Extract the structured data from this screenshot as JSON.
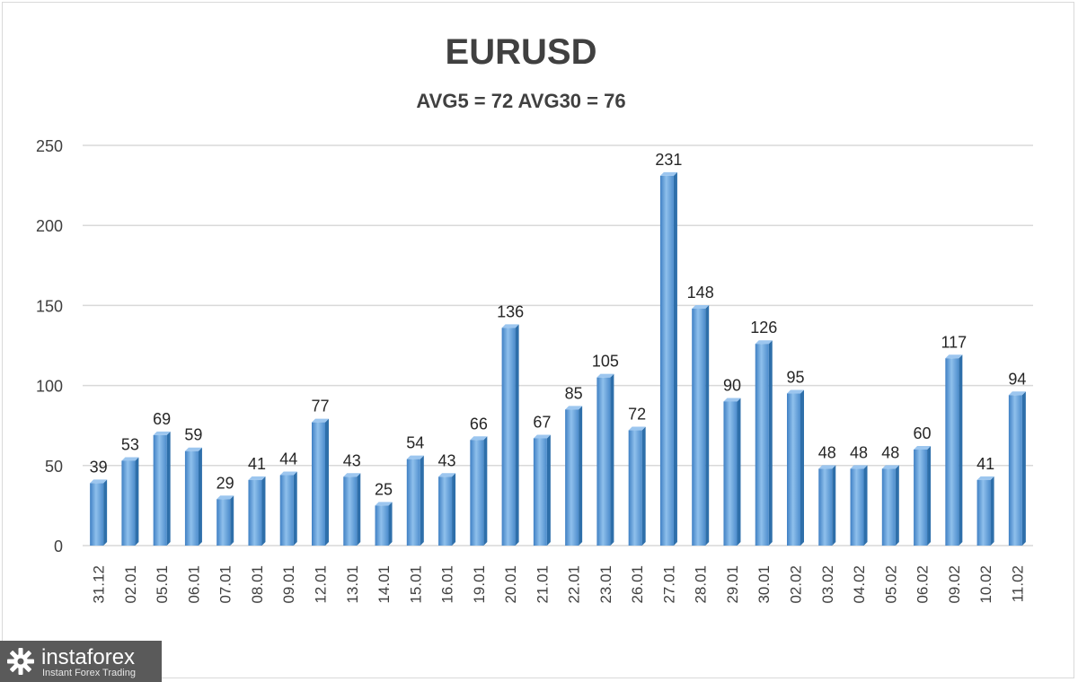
{
  "chart_data": {
    "type": "bar",
    "title": "EURUSD",
    "subtitle": "AVG5 = 72 AVG30 = 76",
    "categories": [
      "31.12",
      "02.01",
      "05.01",
      "06.01",
      "07.01",
      "08.01",
      "09.01",
      "12.01",
      "13.01",
      "14.01",
      "15.01",
      "16.01",
      "19.01",
      "20.01",
      "21.01",
      "22.01",
      "23.01",
      "26.01",
      "27.01",
      "28.01",
      "29.01",
      "30.01",
      "02.02",
      "03.02",
      "04.02",
      "05.02",
      "06.02",
      "09.02",
      "10.02",
      "11.02"
    ],
    "values": [
      39,
      53,
      69,
      59,
      29,
      41,
      44,
      77,
      43,
      25,
      54,
      43,
      66,
      136,
      67,
      85,
      105,
      72,
      231,
      148,
      90,
      126,
      95,
      48,
      48,
      48,
      60,
      117,
      41,
      94
    ],
    "ylim": [
      0,
      250
    ],
    "yticks": [
      0,
      50,
      100,
      150,
      200,
      250
    ],
    "grid": true,
    "legend": "none",
    "bar_color": "#5b9bd5",
    "bar_dark": "#2e6faa",
    "xlabel": "",
    "ylabel": ""
  },
  "logo": {
    "name": "instaforex",
    "tagline": "Instant Forex Trading",
    "icon": "gear-icon"
  }
}
